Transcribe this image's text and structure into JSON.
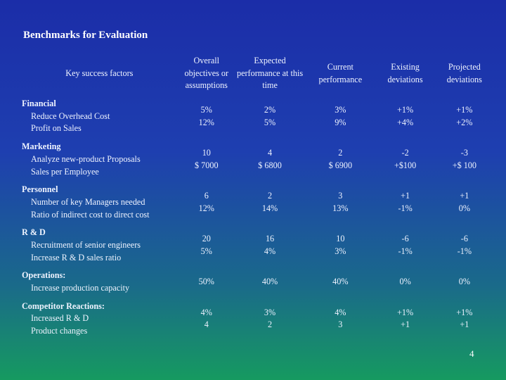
{
  "title": "Benchmarks for Evaluation",
  "columns": {
    "key": "Key success factors",
    "overall": "Overall objectives or assumptions",
    "expected": "Expected performance at this time",
    "current": "Current performance",
    "existing": "Existing deviations",
    "projected": "Projected deviations"
  },
  "rows": [
    {
      "category": "Financial",
      "items": [
        "Reduce Overhead Cost",
        "Profit on Sales"
      ],
      "overall": [
        "5%",
        "12%"
      ],
      "expected": [
        "2%",
        "5%"
      ],
      "current": [
        "3%",
        "9%"
      ],
      "existing": [
        "+1%",
        "+4%"
      ],
      "projected": [
        "+1%",
        "+2%"
      ]
    },
    {
      "category": "Marketing",
      "items": [
        "Analyze new-product Proposals",
        "Sales per Employee"
      ],
      "overall": [
        "10",
        "$ 7000"
      ],
      "expected": [
        "4",
        "$ 6800"
      ],
      "current": [
        "2",
        "$ 6900"
      ],
      "existing": [
        "-2",
        "+$100"
      ],
      "projected": [
        "-3",
        "+$ 100"
      ]
    },
    {
      "category": "Personnel",
      "items": [
        "Number of key Managers needed",
        "Ratio of indirect cost to direct cost"
      ],
      "overall": [
        "6",
        "12%"
      ],
      "expected": [
        "2",
        "14%"
      ],
      "current": [
        "3",
        "13%"
      ],
      "existing": [
        "+1",
        "-1%"
      ],
      "projected": [
        "+1",
        "0%"
      ]
    },
    {
      "category": "R & D",
      "items": [
        "Recruitment of senior engineers",
        "Increase R & D sales ratio"
      ],
      "overall": [
        "20",
        "5%"
      ],
      "expected": [
        "16",
        "4%"
      ],
      "current": [
        "10",
        "3%"
      ],
      "existing": [
        "-6",
        "-1%"
      ],
      "projected": [
        "-6",
        "-1%"
      ]
    },
    {
      "category": "Operations:",
      "items": [
        "Increase production capacity"
      ],
      "overall": [
        "50%"
      ],
      "expected": [
        "40%"
      ],
      "current": [
        "40%"
      ],
      "existing": [
        "0%"
      ],
      "projected": [
        "0%"
      ]
    },
    {
      "category": "Competitor Reactions:",
      "items": [
        "Increased R & D",
        "Product changes"
      ],
      "overall": [
        "4%",
        "4"
      ],
      "expected": [
        "3%",
        "2"
      ],
      "current": [
        "4%",
        "3"
      ],
      "existing": [
        "+1%",
        "+1"
      ],
      "projected": [
        "+1%",
        "+1"
      ]
    }
  ],
  "page_number": "4"
}
